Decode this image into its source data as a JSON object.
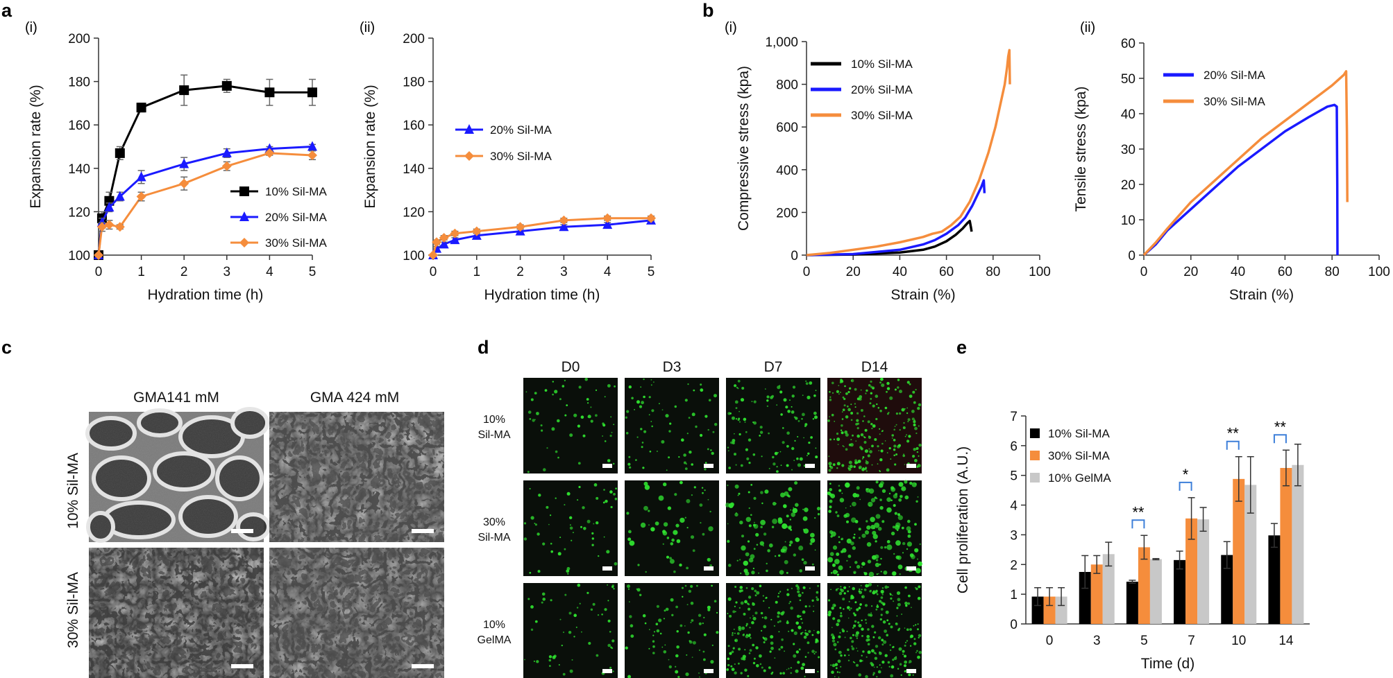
{
  "colors": {
    "black": "#000000",
    "blue": "#1a1aff",
    "orange": "#f58d3c",
    "gray": "#c8c8c8",
    "bracket": "#3d7fd9"
  },
  "panel_labels": {
    "a": "a",
    "b": "b",
    "c": "c",
    "d": "d",
    "e": "e",
    "i": "(i)",
    "ii": "(ii)"
  },
  "chart_data": [
    {
      "id": "a-i",
      "type": "line",
      "xlabel": "Hydration time (h)",
      "ylabel": "Expansion rate (%)",
      "xlim": [
        0,
        5
      ],
      "ylim": [
        100,
        200
      ],
      "xticks": [
        "0",
        "1",
        "2",
        "3",
        "4",
        "5"
      ],
      "yticks": [
        "100",
        "120",
        "140",
        "160",
        "180",
        "200"
      ],
      "legend_position": "bottom-right",
      "series": [
        {
          "name": "10% Sil-MA",
          "color": "#000000",
          "marker": "square",
          "x": [
            0,
            0.08,
            0.25,
            0.5,
            1,
            2,
            3,
            4,
            5
          ],
          "y": [
            100,
            117,
            125,
            147,
            168,
            176,
            178,
            175,
            175
          ],
          "err": [
            0,
            3,
            4,
            3,
            2,
            7,
            3,
            6,
            6
          ]
        },
        {
          "name": "20% Sil-MA",
          "color": "#1a1aff",
          "marker": "triangle",
          "x": [
            0,
            0.08,
            0.25,
            0.5,
            1,
            2,
            3,
            4,
            5
          ],
          "y": [
            100,
            115,
            122,
            127,
            136,
            142,
            147,
            149,
            150
          ],
          "err": [
            0,
            2,
            2,
            2,
            3,
            3,
            2,
            1,
            1
          ]
        },
        {
          "name": "30% Sil-MA",
          "color": "#f58d3c",
          "marker": "diamond",
          "x": [
            0,
            0.08,
            0.25,
            0.5,
            1,
            2,
            3,
            4,
            5
          ],
          "y": [
            100,
            113,
            114,
            113,
            127,
            133,
            141,
            147,
            146
          ],
          "err": [
            0,
            2,
            2,
            1,
            2,
            3,
            2,
            1,
            2
          ]
        }
      ]
    },
    {
      "id": "a-ii",
      "type": "line",
      "xlabel": "Hydration time (h)",
      "ylabel": "Expansion rate (%)",
      "xlim": [
        0,
        5
      ],
      "ylim": [
        100,
        200
      ],
      "xticks": [
        "0",
        "1",
        "2",
        "3",
        "4",
        "5"
      ],
      "yticks": [
        "100",
        "120",
        "140",
        "160",
        "180",
        "200"
      ],
      "legend_position": "middle-left",
      "series": [
        {
          "name": "20% Sil-MA",
          "color": "#1a1aff",
          "marker": "triangle",
          "x": [
            0,
            0.08,
            0.25,
            0.5,
            1,
            2,
            3,
            4,
            5
          ],
          "y": [
            100,
            103,
            105,
            107,
            109,
            111,
            113,
            114,
            116
          ],
          "err": [
            0,
            1,
            1,
            1,
            1,
            1,
            1,
            1,
            1
          ]
        },
        {
          "name": "30% Sil-MA",
          "color": "#f58d3c",
          "marker": "diamond",
          "x": [
            0,
            0.08,
            0.25,
            0.5,
            1,
            2,
            3,
            4,
            5
          ],
          "y": [
            100,
            106,
            108,
            110,
            111,
            113,
            116,
            117,
            117
          ],
          "err": [
            0,
            1,
            1,
            1,
            1,
            1,
            1,
            1,
            1
          ]
        }
      ]
    },
    {
      "id": "b-i",
      "type": "line",
      "xlabel": "Strain (%)",
      "ylabel": "Compressive stress (kpa)",
      "xlim": [
        0,
        100
      ],
      "ylim": [
        0,
        1000
      ],
      "xticks": [
        "0",
        "20",
        "40",
        "60",
        "80",
        "100"
      ],
      "yticks": [
        "0",
        "200",
        "400",
        "600",
        "800",
        "1,000"
      ],
      "legend_position": "top-left",
      "series": [
        {
          "name": "10% Sil-MA",
          "color": "#000000",
          "x": [
            0,
            20,
            40,
            50,
            55,
            60,
            64,
            67,
            69,
            70,
            70.5,
            70.8
          ],
          "y": [
            0,
            3,
            12,
            25,
            40,
            65,
            95,
            125,
            150,
            160,
            130,
            110
          ]
        },
        {
          "name": "20% Sil-MA",
          "color": "#1a1aff",
          "x": [
            0,
            20,
            40,
            50,
            55,
            60,
            65,
            68,
            71,
            73,
            75,
            76,
            76.3
          ],
          "y": [
            0,
            5,
            25,
            50,
            70,
            100,
            140,
            175,
            230,
            275,
            320,
            350,
            290
          ]
        },
        {
          "name": "30% Sil-MA",
          "color": "#f58d3c",
          "x": [
            0,
            10,
            20,
            30,
            40,
            50,
            54,
            56,
            58,
            62,
            66,
            70,
            74,
            78,
            81,
            83,
            85,
            86,
            86.5,
            87,
            87.2
          ],
          "y": [
            0,
            10,
            25,
            40,
            60,
            85,
            100,
            105,
            110,
            140,
            180,
            250,
            350,
            480,
            600,
            700,
            800,
            880,
            930,
            960,
            800
          ]
        }
      ]
    },
    {
      "id": "b-ii",
      "type": "line",
      "xlabel": "Strain (%)",
      "ylabel": "Tensile stress (kpa)",
      "xlim": [
        0,
        100
      ],
      "ylim": [
        0,
        60
      ],
      "xticks": [
        "0",
        "20",
        "40",
        "60",
        "80",
        "100"
      ],
      "yticks": [
        "0",
        "10",
        "20",
        "30",
        "40",
        "50",
        "60"
      ],
      "legend_position": "top-left",
      "series": [
        {
          "name": "20% Sil-MA",
          "color": "#1a1aff",
          "x": [
            0,
            5,
            10,
            20,
            30,
            40,
            50,
            60,
            70,
            78,
            81,
            82,
            82.2,
            82.3
          ],
          "y": [
            0,
            3,
            7,
            13,
            19,
            25,
            30,
            35,
            39,
            42,
            42.5,
            42,
            20,
            0
          ]
        },
        {
          "name": "30% Sil-MA",
          "color": "#f58d3c",
          "x": [
            0,
            5,
            10,
            20,
            30,
            40,
            50,
            60,
            70,
            80,
            85,
            86,
            86.3,
            86.5
          ],
          "y": [
            0,
            3.5,
            7.5,
            15,
            21,
            27,
            33,
            38,
            43,
            48,
            51,
            52,
            35,
            15
          ]
        }
      ]
    },
    {
      "id": "e",
      "type": "bar",
      "xlabel": "Time (d)",
      "ylabel": "Cell proliferation (A.U.)",
      "ylim": [
        0,
        7
      ],
      "yticks": [
        "0",
        "1",
        "2",
        "3",
        "4",
        "5",
        "6",
        "7"
      ],
      "categories": [
        "0",
        "3",
        "5",
        "7",
        "10",
        "14"
      ],
      "legend_position": "top-left",
      "series": [
        {
          "name": "10% Sil-MA",
          "color": "#000000",
          "values": [
            0.92,
            1.75,
            1.42,
            2.15,
            2.32,
            2.98
          ],
          "err": [
            0.3,
            0.55,
            0.05,
            0.3,
            0.45,
            0.4
          ]
        },
        {
          "name": "30% Sil-MA",
          "color": "#f58d3c",
          "values": [
            0.92,
            2.0,
            2.58,
            3.55,
            4.88,
            5.25
          ],
          "err": [
            0.3,
            0.3,
            0.4,
            0.7,
            0.75,
            0.6
          ]
        },
        {
          "name": "10% GelMA",
          "color": "#c8c8c8",
          "values": [
            0.92,
            2.35,
            2.18,
            3.52,
            4.68,
            5.35
          ],
          "err": [
            0.3,
            0.4,
            0.02,
            0.4,
            0.95,
            0.7
          ]
        }
      ],
      "significance": [
        {
          "category": "5",
          "label": "**"
        },
        {
          "category": "7",
          "label": "*"
        },
        {
          "category": "10",
          "label": "**"
        },
        {
          "category": "14",
          "label": "**"
        }
      ]
    }
  ],
  "sem": {
    "col_headers": [
      "GMA141 mM",
      "GMA 424 mM"
    ],
    "row_labels": [
      "10% Sil-MA",
      "30% Sil-MA"
    ]
  },
  "live_dead": {
    "col_headers": [
      "D0",
      "D3",
      "D7",
      "D14"
    ],
    "row_labels": [
      [
        "10%",
        "Sil-MA"
      ],
      [
        "30%",
        "Sil-MA"
      ],
      [
        "10%",
        "GelMA"
      ]
    ],
    "density": [
      [
        55,
        70,
        110,
        230
      ],
      [
        55,
        55,
        110,
        170
      ],
      [
        55,
        80,
        200,
        260
      ]
    ]
  }
}
